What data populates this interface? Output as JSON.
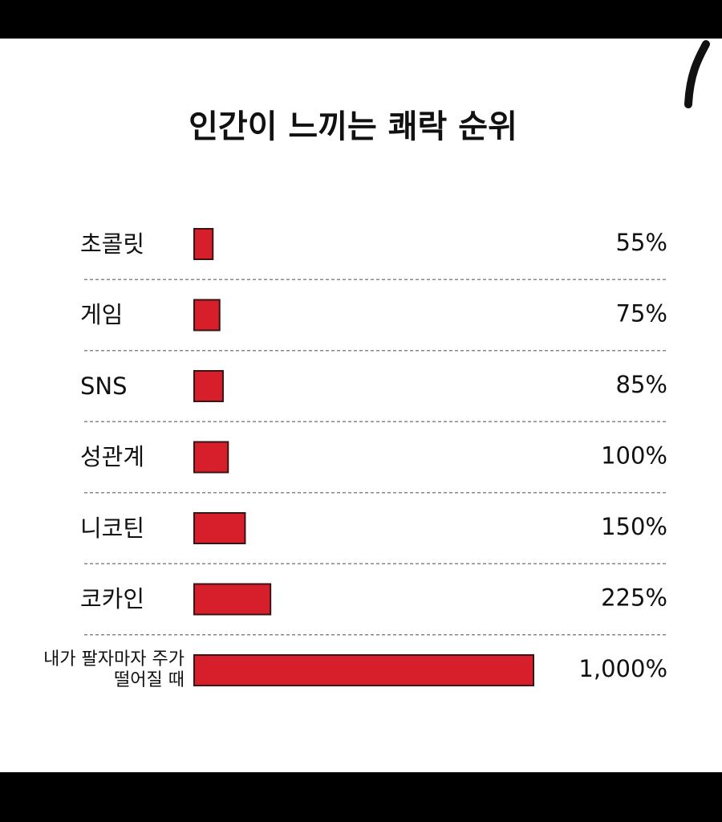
{
  "chart_data": {
    "type": "bar",
    "orientation": "horizontal",
    "title": "인간이 느끼는 쾌락 순위",
    "categories": [
      "초콜릿",
      "게임",
      "SNS",
      "성관계",
      "니코틴",
      "코카인",
      "내가 팔자마자 주가 떨어질 때"
    ],
    "values": [
      55,
      75,
      85,
      100,
      150,
      225,
      1000
    ],
    "value_labels": [
      "55%",
      "75%",
      "85%",
      "100%",
      "150%",
      "225%",
      "1,000%"
    ],
    "color": "#d71f2b",
    "xlim": [
      0,
      1000
    ]
  }
}
